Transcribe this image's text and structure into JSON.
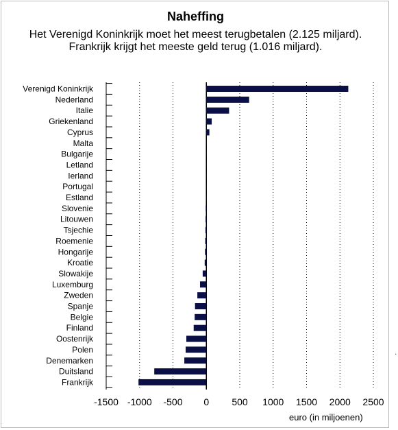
{
  "chart_data": {
    "type": "bar",
    "orientation": "horizontal",
    "title": "Naheffing",
    "subtitle": "Het Verenigd Koninkrijk moet het meest terugbetalen (2.125 miljard). Frankrijk krijgt het meeste geld terug (1.016 miljard).",
    "xlabel": "euro (in miljoenen)",
    "ylabel": "",
    "categories": [
      "Verenigd Koninkrijk",
      "Nederland",
      "Italie",
      "Griekenland",
      "Cyprus",
      "Malta",
      "Bulgarije",
      "Letland",
      "Ierland",
      "Portugal",
      "Estland",
      "Slovenie",
      "Litouwen",
      "Tsjechie",
      "Roemenie",
      "Hongarije",
      "Kroatie",
      "Slowakije",
      "Luxemburg",
      "Zweden",
      "Spanje",
      "Belgie",
      "Finland",
      "Oostenrijk",
      "Polen",
      "Denemarken",
      "Duitsland",
      "Frankrijk"
    ],
    "values": [
      2125,
      640,
      340,
      80,
      45,
      3,
      2,
      2,
      1,
      -2,
      -3,
      -10,
      -12,
      -14,
      -17,
      -20,
      -25,
      -55,
      -95,
      -135,
      -170,
      -175,
      -190,
      -300,
      -310,
      -330,
      -780,
      -1016
    ],
    "xlim": [
      -1500,
      2500
    ],
    "xticks": [
      -1500,
      -1000,
      -500,
      0,
      500,
      1000,
      1500,
      2000,
      2500
    ],
    "grid": "vertical dotted",
    "bar_color": "#0a1045"
  },
  "stray_mark": "."
}
